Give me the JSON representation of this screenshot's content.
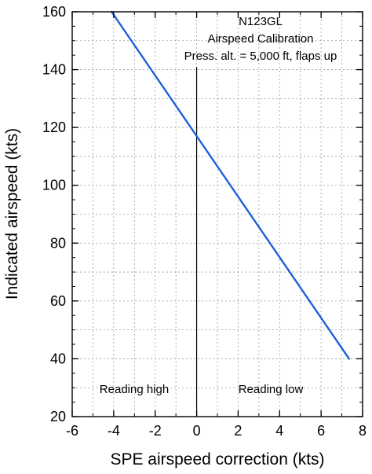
{
  "chart_data": {
    "type": "line",
    "title_lines": [
      "N123GL",
      "Airspeed Calibration",
      "Press. alt. = 5,000 ft, flaps up"
    ],
    "xlabel": "SPE airspeed correction (kts)",
    "ylabel": "Indicated airspeed (kts)",
    "xlim": [
      -6,
      8
    ],
    "ylim": [
      20,
      160
    ],
    "x_ticks": [
      "-6",
      "-4",
      "-2",
      "0",
      "2",
      "4",
      "6",
      "8"
    ],
    "y_ticks": [
      "20",
      "40",
      "60",
      "80",
      "100",
      "120",
      "140",
      "160"
    ],
    "grid": true,
    "series": [
      {
        "x": [
          -4.1,
          7.35
        ],
        "y": [
          160,
          40
        ],
        "color": "#1f5fd8"
      }
    ],
    "reference_line_x": 0,
    "annotations": {
      "left": "Reading high",
      "right": "Reading low"
    }
  }
}
